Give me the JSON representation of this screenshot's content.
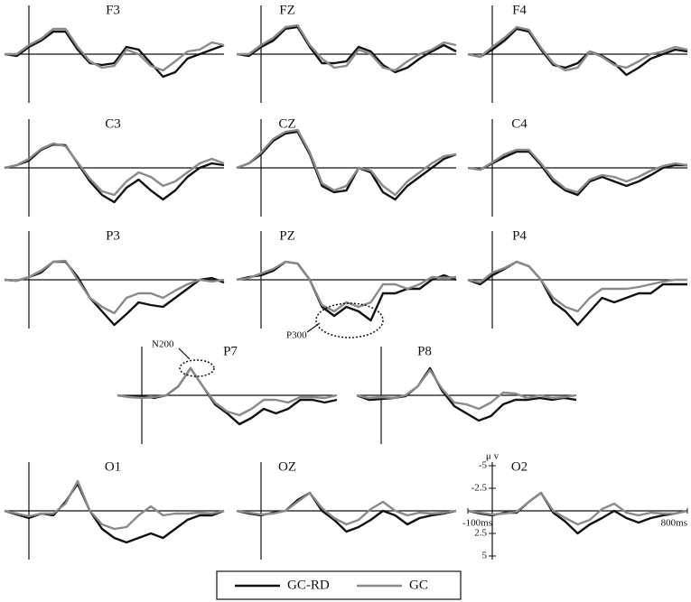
{
  "legend": [
    {
      "name": "GC-RD",
      "color": "#111111"
    },
    {
      "name": "GC",
      "color": "#8a8a8a"
    }
  ],
  "chart_data": [
    {
      "type": "line",
      "title": "F3",
      "x": [
        -100,
        -50,
        0,
        50,
        100,
        150,
        200,
        250,
        300,
        350,
        400,
        450,
        500,
        550,
        600,
        650,
        700,
        750,
        800
      ],
      "xlim": [
        -100,
        800
      ],
      "ylim": [
        5,
        -5
      ],
      "series": [
        {
          "values": [
            0,
            0.2,
            -0.8,
            -1.5,
            -2.5,
            -2.5,
            -0.5,
            1,
            1.2,
            1,
            -0.8,
            -0.5,
            1,
            2.5,
            2,
            0.5,
            0,
            -0.5,
            -1
          ]
        },
        {
          "values": [
            0,
            0,
            -1,
            -1.7,
            -2.8,
            -2.8,
            -0.8,
            0.8,
            1.5,
            1.3,
            -0.5,
            0,
            1.3,
            1.8,
            0.8,
            -0.3,
            -0.5,
            -1.3,
            -1
          ]
        }
      ]
    },
    {
      "type": "line",
      "title": "FZ",
      "x": [
        -100,
        -50,
        0,
        50,
        100,
        150,
        200,
        250,
        300,
        350,
        400,
        450,
        500,
        550,
        600,
        650,
        700,
        750,
        800
      ],
      "xlim": [
        -100,
        800
      ],
      "ylim": [
        5,
        -5
      ],
      "series": [
        {
          "values": [
            0,
            0.2,
            -0.8,
            -1.5,
            -2.8,
            -3,
            -0.8,
            1,
            1,
            0.8,
            -0.8,
            -0.3,
            1.2,
            2,
            1.5,
            0.5,
            -0.3,
            -1,
            -0.3
          ]
        },
        {
          "values": [
            0,
            0,
            -1,
            -1.8,
            -3,
            -3.2,
            -1,
            0.5,
            1.5,
            1.3,
            -0.5,
            0,
            1.5,
            1.8,
            0.8,
            0,
            -0.5,
            -1.3,
            -1
          ]
        }
      ]
    },
    {
      "type": "line",
      "title": "F4",
      "x": [
        -100,
        -50,
        0,
        50,
        100,
        150,
        200,
        250,
        300,
        350,
        400,
        450,
        500,
        550,
        600,
        650,
        700,
        750,
        800
      ],
      "xlim": [
        -100,
        800
      ],
      "ylim": [
        5,
        -5
      ],
      "series": [
        {
          "values": [
            0,
            0.3,
            -0.5,
            -1.5,
            -2.8,
            -2.5,
            -0.5,
            1.2,
            1.5,
            1,
            -0.3,
            0.2,
            1,
            2.3,
            1.5,
            0.5,
            0,
            -0.5,
            -0.3
          ]
        },
        {
          "values": [
            0,
            0.3,
            -0.8,
            -1.8,
            -3,
            -2.7,
            -0.7,
            1,
            1.8,
            1.5,
            -0.3,
            0.3,
            1.2,
            1.5,
            0.8,
            0,
            -0.3,
            -0.8,
            -0.5
          ]
        }
      ]
    },
    {
      "type": "line",
      "title": "C3",
      "x": [
        -100,
        -50,
        0,
        50,
        100,
        150,
        200,
        250,
        300,
        350,
        400,
        450,
        500,
        550,
        600,
        650,
        700,
        750,
        800
      ],
      "xlim": [
        -100,
        800
      ],
      "ylim": [
        5,
        -5
      ],
      "series": [
        {
          "values": [
            0,
            -0.3,
            -0.8,
            -2,
            -2.6,
            -2.5,
            -0.5,
            1.5,
            3,
            3.8,
            2.2,
            1.3,
            2.5,
            3.5,
            2.5,
            1,
            0,
            -0.5,
            -0.3
          ]
        },
        {
          "values": [
            0,
            -0.3,
            -1,
            -2.1,
            -2.7,
            -2.4,
            -0.6,
            1.2,
            2.6,
            3,
            1.5,
            0.5,
            1,
            2,
            1.5,
            0.5,
            -0.5,
            -1,
            -0.5
          ]
        }
      ]
    },
    {
      "type": "line",
      "title": "CZ",
      "x": [
        -100,
        -50,
        0,
        50,
        100,
        150,
        200,
        250,
        300,
        350,
        400,
        450,
        500,
        550,
        600,
        650,
        700,
        750,
        800
      ],
      "xlim": [
        -100,
        800
      ],
      "ylim": [
        5,
        -5
      ],
      "series": [
        {
          "values": [
            0,
            -0.5,
            -1.5,
            -3,
            -3.8,
            -4,
            -1.5,
            2,
            2.7,
            2.5,
            0,
            0.5,
            2.7,
            3.5,
            2,
            1,
            0,
            -1,
            -1.5
          ]
        },
        {
          "values": [
            0,
            -0.5,
            -1.7,
            -3.2,
            -4,
            -4.2,
            -1.7,
            1.7,
            2.5,
            2,
            0,
            0.3,
            2,
            3,
            1.5,
            0.5,
            -0.5,
            -1.3,
            -1.5
          ]
        }
      ]
    },
    {
      "type": "line",
      "title": "C4",
      "x": [
        -100,
        -50,
        0,
        50,
        100,
        150,
        200,
        250,
        300,
        350,
        400,
        450,
        500,
        550,
        600,
        650,
        700,
        750,
        800
      ],
      "xlim": [
        -100,
        800
      ],
      "ylim": [
        5,
        -5
      ],
      "series": [
        {
          "values": [
            0,
            0.2,
            -0.5,
            -1.2,
            -1.8,
            -1.8,
            -0.3,
            1.5,
            2.5,
            3,
            1.5,
            1,
            1.5,
            2,
            1.5,
            0.8,
            0,
            -0.3,
            -0.3
          ]
        },
        {
          "values": [
            0,
            0.2,
            -0.6,
            -1.5,
            -2,
            -2,
            -0.5,
            1.2,
            2.3,
            2.7,
            1.3,
            0.8,
            1,
            1.5,
            1,
            0.3,
            -0.2,
            -0.5,
            -0.3
          ]
        }
      ]
    },
    {
      "type": "line",
      "title": "P3",
      "x": [
        -100,
        -50,
        0,
        50,
        100,
        150,
        200,
        250,
        300,
        350,
        400,
        450,
        500,
        550,
        600,
        650,
        700,
        750,
        800
      ],
      "xlim": [
        -100,
        800
      ],
      "ylim": [
        5,
        -5
      ],
      "series": [
        {
          "values": [
            0,
            0.1,
            -0.3,
            -0.8,
            -2,
            -2,
            -0.3,
            2,
            3.5,
            5,
            3.8,
            2.5,
            2.8,
            3,
            2,
            1,
            0,
            -0.2,
            0.3
          ]
        },
        {
          "values": [
            0,
            0.1,
            -0.3,
            -1,
            -2,
            -2.1,
            0,
            2,
            3,
            3.7,
            2,
            1.5,
            1.5,
            2,
            1.2,
            0.5,
            0,
            0.2,
            0
          ]
        }
      ]
    },
    {
      "type": "line",
      "title": "PZ",
      "annotation": "P300",
      "x": [
        -100,
        -50,
        0,
        50,
        100,
        150,
        200,
        250,
        300,
        350,
        400,
        450,
        500,
        550,
        600,
        650,
        700,
        750,
        800
      ],
      "xlim": [
        -100,
        800
      ],
      "ylim": [
        5,
        -5
      ],
      "series": [
        {
          "values": [
            0,
            -0.3,
            -0.5,
            -1,
            -2,
            -1.8,
            0,
            3,
            4,
            3,
            3.5,
            4.5,
            1.5,
            1.5,
            1,
            1,
            0,
            -0.5,
            0
          ]
        },
        {
          "values": [
            0,
            -0.2,
            -0.7,
            -1.2,
            -2,
            -1.8,
            0,
            2.8,
            3.5,
            2.5,
            3,
            2.5,
            0.5,
            0.5,
            1,
            0.5,
            -0.3,
            -0.2,
            -0.3
          ]
        }
      ]
    },
    {
      "type": "line",
      "title": "P4",
      "x": [
        -100,
        -50,
        0,
        50,
        100,
        150,
        200,
        250,
        300,
        350,
        400,
        450,
        500,
        550,
        600,
        650,
        700,
        750,
        800
      ],
      "xlim": [
        -100,
        800
      ],
      "ylim": [
        5,
        -5
      ],
      "series": [
        {
          "values": [
            0,
            0.5,
            -0.5,
            -1.2,
            -2,
            -1.5,
            0,
            2.5,
            3.5,
            5,
            3.5,
            2,
            2.5,
            2,
            1.5,
            1.5,
            0.5,
            0.5,
            0.5
          ]
        },
        {
          "values": [
            0,
            0.3,
            -0.8,
            -1.3,
            -2,
            -1.5,
            0,
            2,
            3,
            3.5,
            2,
            1,
            1,
            1,
            0.8,
            0.5,
            0.2,
            0,
            0
          ]
        }
      ]
    },
    {
      "type": "line",
      "title": "P7",
      "annotation": "N200",
      "x": [
        -100,
        -50,
        0,
        50,
        100,
        150,
        200,
        250,
        300,
        350,
        400,
        450,
        500,
        550,
        600,
        650,
        700,
        750,
        800
      ],
      "xlim": [
        -100,
        800
      ],
      "ylim": [
        5,
        -5
      ],
      "series": [
        {
          "values": [
            0,
            0.2,
            0.1,
            0.3,
            0,
            -1,
            -3,
            -1,
            1,
            2,
            3.2,
            2.5,
            1.5,
            2,
            1.5,
            0.5,
            0.5,
            0.8,
            0.5
          ]
        },
        {
          "values": [
            0,
            0.2,
            0.3,
            0.2,
            0,
            -1,
            -3,
            -1,
            0.8,
            1.8,
            2.2,
            1.5,
            0.5,
            0.5,
            0.8,
            0.2,
            0.2,
            0.3,
            0
          ]
        }
      ]
    },
    {
      "type": "line",
      "title": "P8",
      "x": [
        -100,
        -50,
        0,
        50,
        100,
        150,
        200,
        250,
        300,
        350,
        400,
        450,
        500,
        550,
        600,
        650,
        700,
        750,
        800
      ],
      "xlim": [
        -100,
        800
      ],
      "ylim": [
        5,
        -5
      ],
      "series": [
        {
          "values": [
            0,
            0.5,
            0.4,
            0.3,
            0.1,
            -1,
            -3,
            -0.5,
            1.2,
            2,
            2.8,
            2.3,
            1,
            0.5,
            0.5,
            0.3,
            0.5,
            0.3,
            0.5
          ]
        },
        {
          "values": [
            0,
            0.3,
            0.2,
            0.3,
            0,
            -1,
            -2.8,
            -0.7,
            0.8,
            1,
            1.5,
            0.8,
            -0.3,
            -0.2,
            0.3,
            0,
            0.3,
            0.2,
            0
          ]
        }
      ]
    },
    {
      "type": "line",
      "title": "O1",
      "x": [
        -100,
        -50,
        0,
        50,
        100,
        150,
        200,
        250,
        300,
        350,
        400,
        450,
        500,
        550,
        600,
        650,
        700,
        750,
        800
      ],
      "xlim": [
        -100,
        800
      ],
      "ylim": [
        5,
        -5
      ],
      "series": [
        {
          "values": [
            0,
            0.4,
            0.8,
            0.3,
            0.5,
            -1,
            -3,
            0,
            2,
            3,
            3.5,
            3,
            2.5,
            3,
            2,
            1,
            0.5,
            0.5,
            0
          ]
        },
        {
          "values": [
            0,
            0.3,
            0.6,
            0.3,
            0.3,
            -0.8,
            -3.3,
            0,
            1.5,
            2,
            1.8,
            0.5,
            -0.5,
            0.5,
            0.3,
            0.3,
            0.2,
            0.3,
            0
          ]
        }
      ]
    },
    {
      "type": "line",
      "title": "OZ",
      "x": [
        -100,
        -50,
        0,
        50,
        100,
        150,
        200,
        250,
        300,
        350,
        400,
        450,
        500,
        550,
        600,
        650,
        700,
        750,
        800
      ],
      "xlim": [
        -100,
        800
      ],
      "ylim": [
        5,
        -5
      ],
      "series": [
        {
          "values": [
            0,
            0.3,
            0.5,
            0.2,
            0,
            -1.2,
            -2,
            0,
            1,
            2.3,
            1.8,
            1,
            0,
            0.5,
            1.5,
            0.8,
            0.5,
            0.3,
            0
          ]
        },
        {
          "values": [
            0,
            0.2,
            0.4,
            0.3,
            0,
            -1,
            -2,
            -0.3,
            0.8,
            1.5,
            1,
            -0.2,
            -1,
            0,
            0.5,
            0.2,
            0.3,
            0.2,
            0
          ]
        }
      ]
    },
    {
      "type": "line",
      "title": "O2",
      "ylabel": "μ v",
      "x": [
        -100,
        -50,
        0,
        50,
        100,
        150,
        200,
        250,
        300,
        350,
        400,
        450,
        500,
        550,
        600,
        650,
        700,
        750,
        800
      ],
      "xlim": [
        -100,
        800
      ],
      "ylim": [
        5,
        -5
      ],
      "yticks": [
        -5,
        -2.5,
        2.5,
        5
      ],
      "xticks": [
        {
          "value": -100,
          "label": "-100ms"
        },
        {
          "value": 800,
          "label": "800ms"
        }
      ],
      "series": [
        {
          "values": [
            0,
            0.3,
            0.5,
            0.2,
            0.2,
            -1,
            -2,
            0.2,
            1.2,
            2.5,
            1.5,
            0.8,
            0,
            0.8,
            1.3,
            0.8,
            0.5,
            0.3,
            0
          ]
        },
        {
          "values": [
            0,
            0.2,
            0.4,
            0.3,
            0.1,
            -1,
            -2,
            0,
            0.8,
            1.5,
            1,
            -0.2,
            -0.8,
            0.2,
            0.5,
            0.2,
            0.3,
            0.3,
            0
          ]
        }
      ]
    }
  ]
}
